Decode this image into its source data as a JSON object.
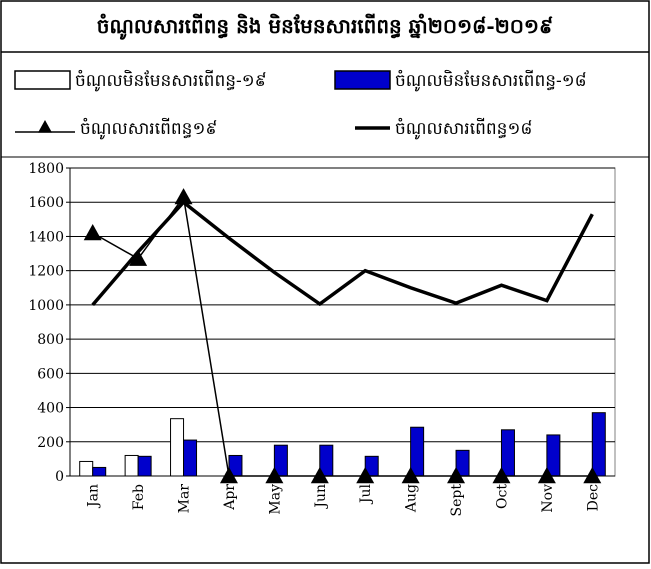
{
  "chart_data": {
    "type": "bar_line",
    "title": "ចំណូលសារពើពន្ធ និង មិនមែនសារពើពន្ធ ឆ្នាំ២០១៨-២០១៩",
    "categories": [
      "Jan",
      "Feb",
      "Mar",
      "Apr",
      "May",
      "Jun",
      "Jul",
      "Aug",
      "Sept",
      "Oct",
      "Nov",
      "Dec"
    ],
    "series": [
      {
        "name": "ចំណូលមិនមែនសារពើពន្ធ-១៩",
        "kind": "bar",
        "color": "#ffffff",
        "values": [
          85,
          120,
          335,
          null,
          null,
          null,
          null,
          null,
          null,
          null,
          null,
          null
        ]
      },
      {
        "name": "ចំណូលមិនមែនសារពើពន្ធ-១៨",
        "kind": "bar",
        "color": "#0000cc",
        "values": [
          50,
          115,
          210,
          120,
          180,
          180,
          115,
          285,
          150,
          270,
          240,
          370
        ]
      },
      {
        "name": "ចំណូលសារពើពន្ធ១៩",
        "kind": "line-marker",
        "color": "#000000",
        "values": [
          1420,
          1270,
          1630,
          0,
          0,
          0,
          0,
          0,
          0,
          0,
          0,
          0
        ]
      },
      {
        "name": "ចំណូលសារពើពន្ធ១៨",
        "kind": "line",
        "color": "#000000",
        "values": [
          1000,
          1310,
          1600,
          1390,
          1190,
          1005,
          1200,
          1100,
          1010,
          1115,
          1025,
          1530
        ]
      }
    ],
    "ylim": [
      0,
      1800
    ],
    "yticks": [
      0,
      200,
      400,
      600,
      800,
      1000,
      1200,
      1400,
      1600,
      1800
    ],
    "grid": true
  }
}
